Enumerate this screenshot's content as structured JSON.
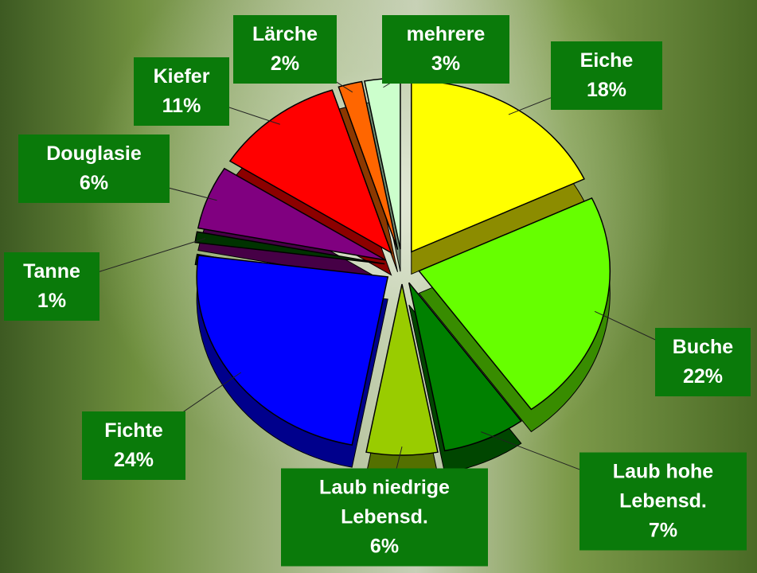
{
  "chart_data": {
    "type": "pie",
    "categories": [
      "Eiche",
      "Buche",
      "Laub hohe Lebensd.",
      "Laub niedrige Lebensd.",
      "Fichte",
      "Tanne",
      "Douglasie",
      "Kiefer",
      "Lärche",
      "mehrere"
    ],
    "values": [
      18,
      22,
      7,
      6,
      24,
      1,
      6,
      11,
      2,
      3
    ],
    "value_labels": [
      "18%",
      "22%",
      "7%",
      "6%",
      "24%",
      "1%",
      "6%",
      "11%",
      "2%",
      "3%"
    ],
    "colors": [
      "#ffff00",
      "#66ff00",
      "#008000",
      "#99cc00",
      "#0000ff",
      "#003300",
      "#800080",
      "#ff0000",
      "#ff6600",
      "#ccffcc"
    ]
  }
}
